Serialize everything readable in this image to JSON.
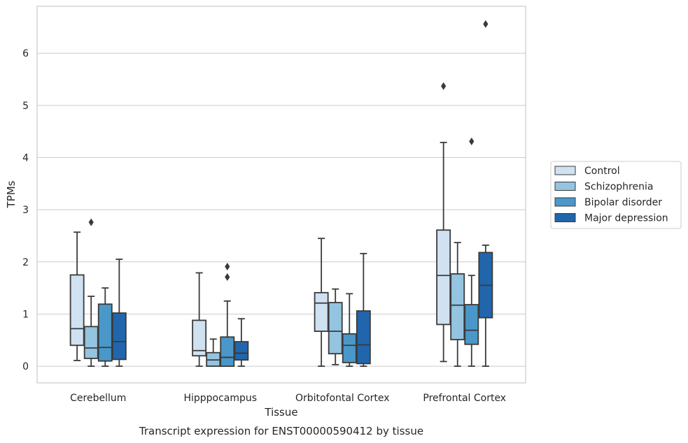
{
  "chart_data": {
    "type": "box",
    "caption": "Transcript expression for ENST00000590412 by tissue",
    "xlabel": "Tissue",
    "ylabel": "TPMs",
    "ylim": [
      -0.32,
      6.9
    ],
    "yticks": [
      0,
      1,
      2,
      3,
      4,
      5,
      6
    ],
    "grid": "horizontal",
    "legend_position": "right",
    "categories": [
      "Cerebellum",
      "Hipppocampus",
      "Orbitofontal Cortex",
      "Prefrontal Cortex"
    ],
    "series": [
      {
        "name": "Control",
        "color": "#d0e1f2",
        "boxes": [
          {
            "whislo": 0.11,
            "q1": 0.4,
            "med": 0.72,
            "q3": 1.75,
            "whishi": 2.57,
            "fliers": []
          },
          {
            "whislo": 0.0,
            "q1": 0.2,
            "med": 0.3,
            "q3": 0.88,
            "whishi": 1.79,
            "fliers": []
          },
          {
            "whislo": 0.0,
            "q1": 0.67,
            "med": 1.21,
            "q3": 1.41,
            "whishi": 2.45,
            "fliers": []
          },
          {
            "whislo": 0.09,
            "q1": 0.8,
            "med": 1.74,
            "q3": 2.61,
            "whishi": 4.29,
            "fliers": [
              5.37
            ]
          }
        ]
      },
      {
        "name": "Schizophrenia",
        "color": "#94c4df",
        "boxes": [
          {
            "whislo": 0.0,
            "q1": 0.15,
            "med": 0.35,
            "q3": 0.76,
            "whishi": 1.34,
            "fliers": [
              2.76
            ]
          },
          {
            "whislo": 0.0,
            "q1": 0.0,
            "med": 0.12,
            "q3": 0.26,
            "whishi": 0.52,
            "fliers": []
          },
          {
            "whislo": 0.03,
            "q1": 0.24,
            "med": 0.67,
            "q3": 1.22,
            "whishi": 1.48,
            "fliers": []
          },
          {
            "whislo": 0.0,
            "q1": 0.51,
            "med": 1.17,
            "q3": 1.77,
            "whishi": 2.37,
            "fliers": []
          }
        ]
      },
      {
        "name": "Bipolar disorder",
        "color": "#4a98c9",
        "boxes": [
          {
            "whislo": 0.0,
            "q1": 0.1,
            "med": 0.36,
            "q3": 1.19,
            "whishi": 1.5,
            "fliers": []
          },
          {
            "whislo": 0.0,
            "q1": 0.0,
            "med": 0.17,
            "q3": 0.56,
            "whishi": 1.25,
            "fliers": [
              1.71,
              1.91
            ]
          },
          {
            "whislo": 0.0,
            "q1": 0.07,
            "med": 0.4,
            "q3": 0.62,
            "whishi": 1.39,
            "fliers": []
          },
          {
            "whislo": 0.0,
            "q1": 0.42,
            "med": 0.69,
            "q3": 1.18,
            "whishi": 1.74,
            "fliers": [
              4.31
            ]
          }
        ]
      },
      {
        "name": "Major depression",
        "color": "#2166ac",
        "boxes": [
          {
            "whislo": 0.0,
            "q1": 0.13,
            "med": 0.47,
            "q3": 1.02,
            "whishi": 2.05,
            "fliers": []
          },
          {
            "whislo": 0.0,
            "q1": 0.12,
            "med": 0.25,
            "q3": 0.47,
            "whishi": 0.91,
            "fliers": []
          },
          {
            "whislo": 0.0,
            "q1": 0.05,
            "med": 0.41,
            "q3": 1.06,
            "whishi": 2.16,
            "fliers": []
          },
          {
            "whislo": 0.0,
            "q1": 0.93,
            "med": 1.55,
            "q3": 2.18,
            "whishi": 2.32,
            "fliers": [
              6.56
            ]
          }
        ]
      }
    ]
  }
}
